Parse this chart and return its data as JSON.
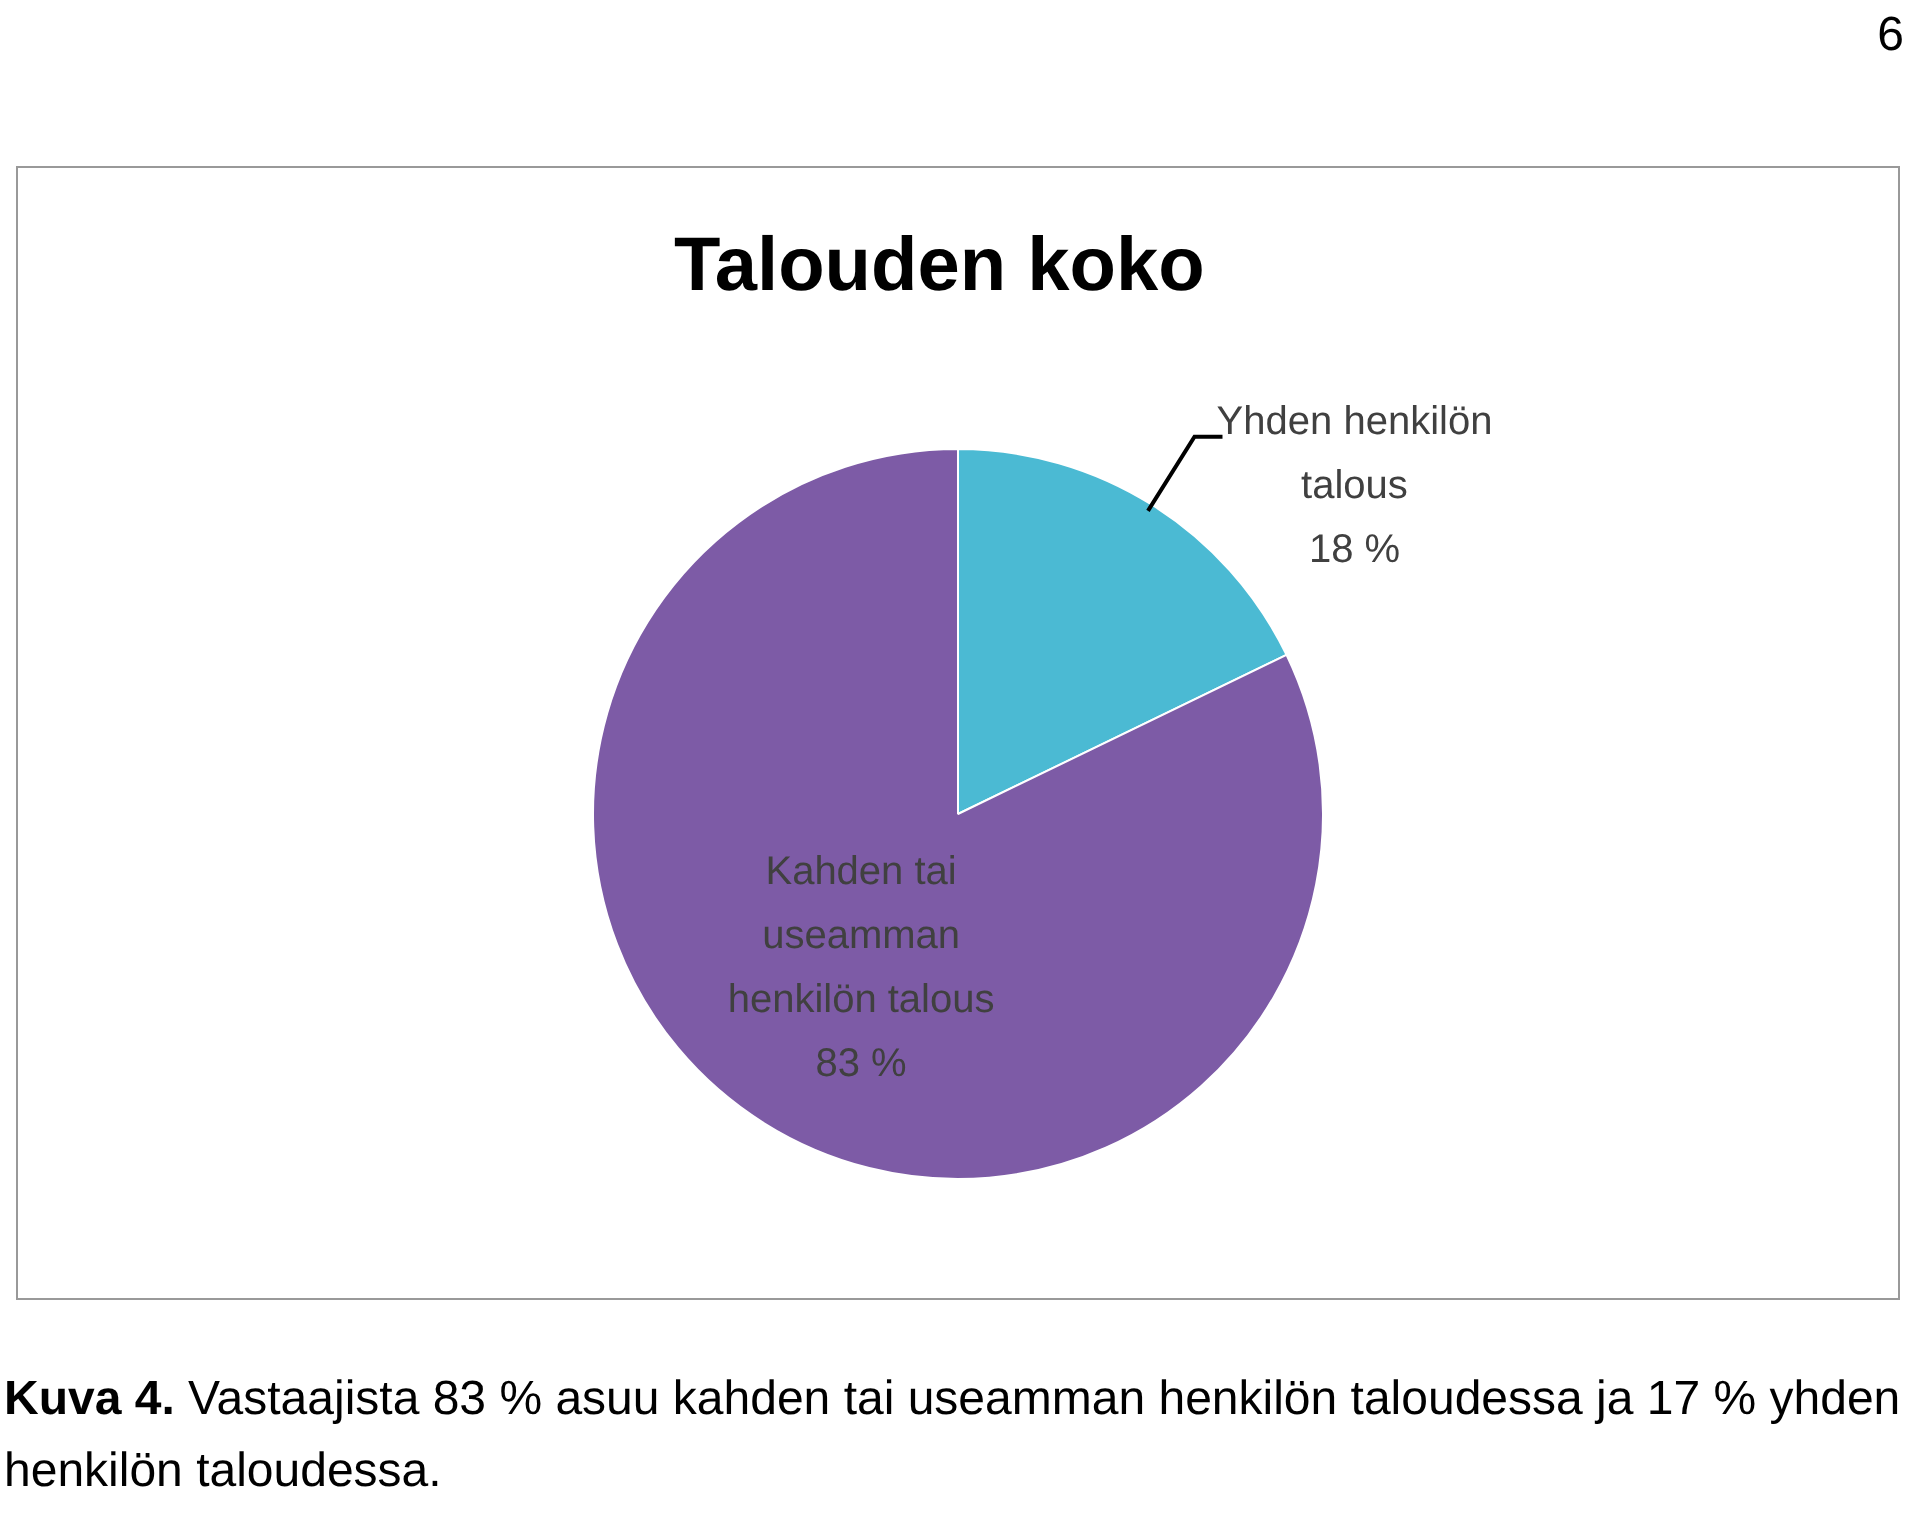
{
  "chart_data": {
    "type": "pie",
    "title": "Talouden koko",
    "categories": [
      "Yhden henkilön talous",
      "Kahden tai useamman henkilön talous"
    ],
    "values": [
      18,
      83
    ],
    "value_labels": [
      "18 %",
      "83 %"
    ],
    "colors": [
      "#4bbad3",
      "#7d5ba6"
    ],
    "legend": false,
    "annotations": [
      "6",
      "Kuva 4. Vastaajista 83 % asuu kahden tai useamman henkilön taloudessa ja 17 % yhden henkilön taloudessa."
    ]
  }
}
